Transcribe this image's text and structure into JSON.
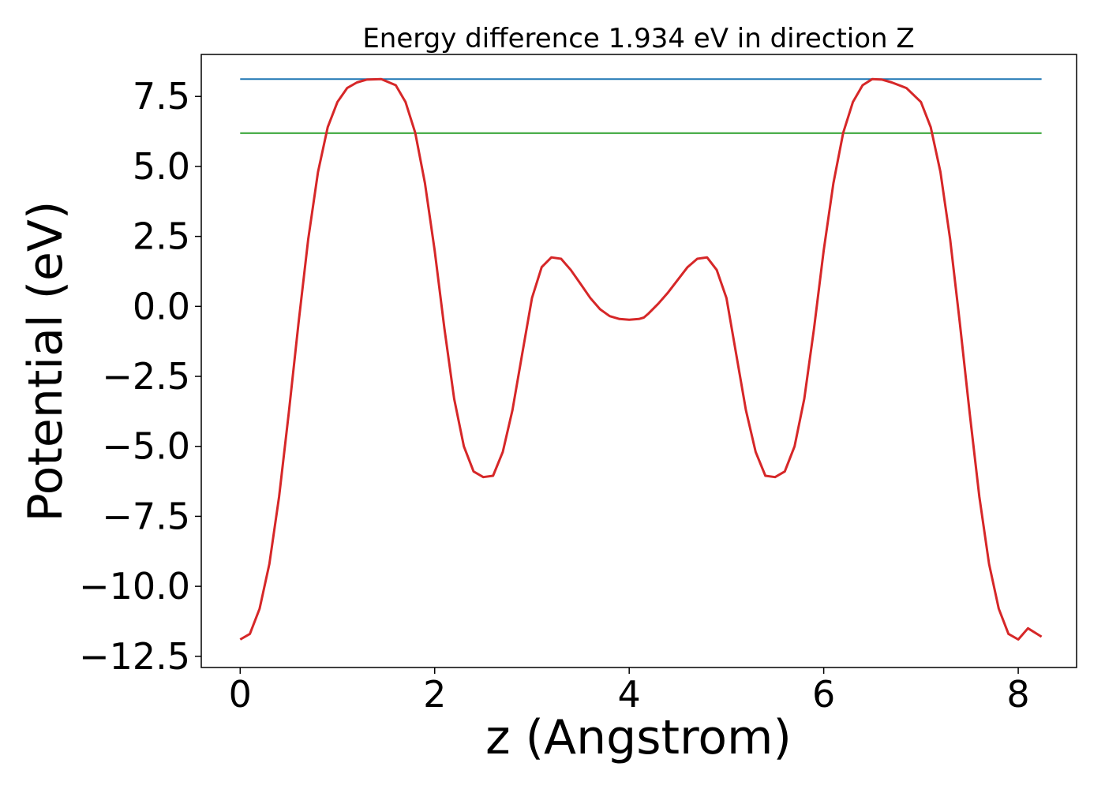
{
  "chart_data": {
    "type": "line",
    "title": "Energy difference 1.934 eV in direction Z",
    "xlabel": "z (Angstrom)",
    "ylabel": "Potential (eV)",
    "xlim": [
      -0.4,
      8.6
    ],
    "ylim": [
      -12.9,
      9.0
    ],
    "xticks": [
      0,
      2,
      4,
      6,
      8
    ],
    "xtick_labels": [
      "0",
      "2",
      "4",
      "6",
      "8"
    ],
    "yticks": [
      7.5,
      5.0,
      2.5,
      0.0,
      -2.5,
      -5.0,
      -7.5,
      -10.0,
      -12.5
    ],
    "ytick_labels": [
      "7.5",
      "5.0",
      "2.5",
      "0.0",
      "−2.5",
      "−5.0",
      "−7.5",
      "−10.0",
      "−12.5"
    ],
    "grid": false,
    "colors": {
      "potential": "#d62728",
      "upper_level": "#1f77b4",
      "lower_level": "#2ca02c"
    },
    "hlines": [
      {
        "y": 8.12,
        "x": [
          0,
          8.24
        ],
        "color": "#1f77b4"
      },
      {
        "y": 6.19,
        "x": [
          0,
          8.24
        ],
        "color": "#2ca02c"
      }
    ],
    "series": [
      {
        "color": "#d62728",
        "x": [
          0.0,
          0.1,
          0.2,
          0.3,
          0.4,
          0.5,
          0.6,
          0.7,
          0.8,
          0.9,
          1.0,
          1.1,
          1.2,
          1.3,
          1.45,
          1.6,
          1.7,
          1.8,
          1.9,
          2.0,
          2.1,
          2.2,
          2.3,
          2.4,
          2.5,
          2.6,
          2.7,
          2.8,
          2.9,
          3.0,
          3.1,
          3.2,
          3.3,
          3.4,
          3.5,
          3.6,
          3.7,
          3.8,
          3.9,
          4.0,
          4.1,
          4.15,
          4.2,
          4.3,
          4.4,
          4.5,
          4.6,
          4.7,
          4.8,
          4.9,
          5.0,
          5.1,
          5.2,
          5.3,
          5.4,
          5.5,
          5.6,
          5.7,
          5.8,
          5.9,
          6.0,
          6.1,
          6.2,
          6.3,
          6.4,
          6.5,
          6.6,
          6.7,
          6.85,
          7.0,
          7.1,
          7.2,
          7.3,
          7.4,
          7.5,
          7.6,
          7.7,
          7.8,
          7.9,
          8.0,
          8.1,
          8.24
        ],
        "y": [
          -11.9,
          -11.7,
          -10.8,
          -9.2,
          -6.8,
          -3.8,
          -0.6,
          2.4,
          4.8,
          6.4,
          7.3,
          7.8,
          8.0,
          8.1,
          8.12,
          7.9,
          7.3,
          6.2,
          4.4,
          2.0,
          -0.8,
          -3.3,
          -5.0,
          -5.9,
          -6.1,
          -6.05,
          -5.2,
          -3.7,
          -1.7,
          0.3,
          1.4,
          1.75,
          1.7,
          1.3,
          0.8,
          0.3,
          -0.1,
          -0.35,
          -0.45,
          -0.48,
          -0.45,
          -0.4,
          -0.25,
          0.1,
          0.5,
          0.95,
          1.4,
          1.7,
          1.75,
          1.3,
          0.3,
          -1.7,
          -3.7,
          -5.2,
          -6.05,
          -6.1,
          -5.9,
          -5.0,
          -3.3,
          -0.8,
          2.0,
          4.4,
          6.2,
          7.3,
          7.9,
          8.12,
          8.1,
          8.0,
          7.8,
          7.3,
          6.4,
          4.8,
          2.4,
          -0.6,
          -3.8,
          -6.8,
          -9.2,
          -10.8,
          -11.7,
          -11.9,
          -11.5,
          -11.8
        ]
      }
    ]
  }
}
